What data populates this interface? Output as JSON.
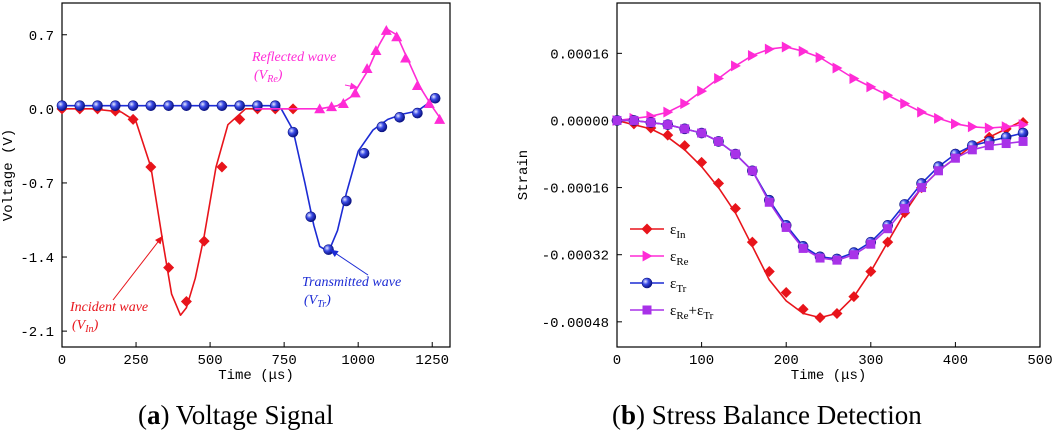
{
  "captions": {
    "a_label": "a",
    "a_text": "Voltage Signal",
    "b_label": "b",
    "b_text": "Stress Balance Detection"
  },
  "chart_data": [
    {
      "id": "a",
      "type": "line",
      "title": "",
      "xlabel": "Time (μs)",
      "ylabel": "Voltage (V)",
      "xlim": [
        0,
        1310
      ],
      "ylim": [
        -2.25,
        1.0
      ],
      "xticks": [
        0,
        250,
        500,
        750,
        1000,
        1250
      ],
      "yticks": [
        0.7,
        0.0,
        -0.7,
        -1.4,
        -2.1
      ],
      "ytick_labels": [
        "0.7",
        "0.0",
        "-0.7",
        "-1.4",
        "-2.1"
      ],
      "series": [
        {
          "name": "Incident wave",
          "color": "#e8141b",
          "marker": "diamond",
          "x": [
            0,
            100,
            200,
            250,
            300,
            340,
            370,
            400,
            420,
            450,
            480,
            520,
            560,
            620,
            700,
            800
          ],
          "y": [
            0.0,
            0.0,
            -0.03,
            -0.12,
            -0.55,
            -1.25,
            -1.75,
            -1.95,
            -1.88,
            -1.6,
            -1.2,
            -0.55,
            -0.15,
            0.0,
            0.0,
            0.0
          ],
          "marker_x": [
            0,
            60,
            120,
            180,
            240,
            300,
            360,
            420,
            480,
            540,
            600,
            660,
            720,
            780
          ],
          "marker_y": [
            0.0,
            0.0,
            0.0,
            -0.02,
            -0.1,
            -0.55,
            -1.5,
            -1.82,
            -1.25,
            -0.55,
            -0.1,
            0.0,
            0.0,
            0.0
          ]
        },
        {
          "name": "Transmitted wave",
          "color": "#1c2bd4",
          "marker": "sphere",
          "x": [
            0,
            700,
            740,
            780,
            820,
            850,
            870,
            900,
            930,
            960,
            1000,
            1050,
            1100,
            1150,
            1200,
            1260
          ],
          "y": [
            0.03,
            0.03,
            0.0,
            -0.2,
            -0.7,
            -1.1,
            -1.3,
            -1.35,
            -1.15,
            -0.8,
            -0.4,
            -0.2,
            -0.1,
            -0.05,
            -0.02,
            0.1
          ],
          "marker_x": [
            0,
            60,
            120,
            180,
            240,
            300,
            360,
            420,
            480,
            540,
            600,
            660,
            720,
            780,
            840,
            900,
            960,
            1020,
            1080,
            1140,
            1200,
            1260
          ],
          "marker_y": [
            0.03,
            0.03,
            0.03,
            0.03,
            0.03,
            0.03,
            0.03,
            0.03,
            0.03,
            0.03,
            0.03,
            0.03,
            0.03,
            -0.22,
            -1.02,
            -1.33,
            -0.87,
            -0.42,
            -0.17,
            -0.08,
            -0.04,
            0.1
          ]
        },
        {
          "name": "Reflected wave",
          "color": "#ff2bd6",
          "marker": "triangle-up",
          "x": [
            650,
            800,
            870,
            930,
            980,
            1030,
            1070,
            1100,
            1130,
            1170,
            1210,
            1250,
            1280
          ],
          "y": [
            0.0,
            0.0,
            0.0,
            0.03,
            0.12,
            0.35,
            0.6,
            0.75,
            0.7,
            0.45,
            0.2,
            0.02,
            -0.1
          ],
          "marker_x": [
            870,
            910,
            950,
            990,
            1030,
            1060,
            1095,
            1130,
            1160,
            1200,
            1240,
            1275
          ],
          "marker_y": [
            0.0,
            0.02,
            0.05,
            0.15,
            0.38,
            0.55,
            0.74,
            0.68,
            0.48,
            0.22,
            0.05,
            -0.1
          ]
        }
      ],
      "annotations": [
        {
          "line1": "Reflected wave",
          "line2_main": "(V",
          "line2_sub": "Re",
          "line2_end": ")",
          "color": "#ff2bd6"
        },
        {
          "line1": "Incident wave",
          "line2_main": "(V",
          "line2_sub": "In",
          "line2_end": ")",
          "color": "#e8141b"
        },
        {
          "line1": "Transmitted wave",
          "line2_main": "(V",
          "line2_sub": "Tr",
          "line2_end": ")",
          "color": "#1c2bd4"
        }
      ]
    },
    {
      "id": "b",
      "type": "line",
      "title": "",
      "xlabel": "Time (μs)",
      "ylabel": "Strain",
      "xlim": [
        0,
        500
      ],
      "ylim": [
        -0.00054,
        0.00028
      ],
      "xticks": [
        0,
        100,
        200,
        300,
        400,
        500
      ],
      "yticks": [
        0.00016,
        0.0,
        -0.00016,
        -0.00032,
        -0.00048
      ],
      "ytick_labels": [
        "0.00016",
        "0.00000",
        "-0.00016",
        "-0.00032",
        "-0.00048"
      ],
      "series": [
        {
          "name": "εIn",
          "legend_main": "ε",
          "legend_sub": "In",
          "color": "#e8141b",
          "marker": "diamond",
          "x": [
            0,
            20,
            40,
            60,
            80,
            100,
            120,
            140,
            160,
            180,
            200,
            220,
            240,
            260,
            280,
            300,
            320,
            340,
            360,
            380,
            400,
            420,
            440,
            460,
            480
          ],
          "y": [
            0,
            -1e-05,
            -2e-05,
            -4e-05,
            -7e-05,
            -0.00011,
            -0.00016,
            -0.00022,
            -0.0003,
            -0.00038,
            -0.00043,
            -0.00046,
            -0.00047,
            -0.00046,
            -0.00042,
            -0.00036,
            -0.00029,
            -0.00022,
            -0.00016,
            -0.00012,
            -9e-05,
            -6e-05,
            -4e-05,
            -2e-05,
            0
          ],
          "marker_x": [
            0,
            20,
            40,
            60,
            80,
            100,
            120,
            140,
            160,
            180,
            200,
            220,
            240,
            260,
            280,
            300,
            320,
            340,
            360,
            380,
            400,
            420,
            440,
            460,
            480
          ],
          "marker_y": [
            0,
            -8e-06,
            -1.8e-05,
            -3.5e-05,
            -6e-05,
            -0.0001,
            -0.00015,
            -0.00021,
            -0.00029,
            -0.00036,
            -0.00041,
            -0.00045,
            -0.00047,
            -0.00046,
            -0.00042,
            -0.00036,
            -0.00029,
            -0.00022,
            -0.00016,
            -0.00011,
            -8e-05,
            -6e-05,
            -4e-05,
            -2e-05,
            -5e-06
          ]
        },
        {
          "name": "εRe",
          "legend_main": "ε",
          "legend_sub": "Re",
          "color": "#ff2bd6",
          "marker": "triangle-right",
          "x": [
            0,
            20,
            40,
            60,
            80,
            100,
            120,
            140,
            160,
            180,
            200,
            220,
            240,
            260,
            280,
            300,
            320,
            340,
            360,
            380,
            400,
            420,
            440,
            460,
            480
          ],
          "y": [
            0,
            5e-06,
            1e-05,
            2e-05,
            4e-05,
            7e-05,
            0.0001,
            0.00013,
            0.000155,
            0.00017,
            0.000175,
            0.000165,
            0.00015,
            0.000125,
            0.0001,
            8e-05,
            6e-05,
            4e-05,
            2e-05,
            5e-06,
            -8e-06,
            -1.5e-05,
            -1.8e-05,
            -1.5e-05,
            -1e-05
          ],
          "marker_x": [
            0,
            20,
            40,
            60,
            80,
            100,
            120,
            140,
            160,
            180,
            200,
            220,
            240,
            260,
            280,
            300,
            320,
            340,
            360,
            380,
            400,
            420,
            440,
            460,
            480
          ],
          "marker_y": [
            0,
            5e-06,
            1e-05,
            2e-05,
            4e-05,
            7e-05,
            0.0001,
            0.00013,
            0.000155,
            0.00017,
            0.000175,
            0.000165,
            0.00015,
            0.000125,
            0.0001,
            8e-05,
            6e-05,
            4e-05,
            2e-05,
            5e-06,
            -8e-06,
            -1.5e-05,
            -1.8e-05,
            -1.5e-05,
            -1e-05
          ]
        },
        {
          "name": "εTr",
          "legend_main": "ε",
          "legend_sub": "Tr",
          "color": "#1c2bd4",
          "marker": "sphere",
          "x": [
            0,
            20,
            40,
            60,
            80,
            100,
            120,
            140,
            160,
            180,
            200,
            220,
            240,
            260,
            280,
            300,
            320,
            340,
            360,
            380,
            400,
            420,
            440,
            460,
            480
          ],
          "y": [
            0,
            0,
            -5e-06,
            -1e-05,
            -2e-05,
            -3e-05,
            -5e-05,
            -8e-05,
            -0.00012,
            -0.00019,
            -0.00025,
            -0.0003,
            -0.000325,
            -0.00033,
            -0.000315,
            -0.00029,
            -0.00025,
            -0.0002,
            -0.00015,
            -0.00011,
            -8e-05,
            -6e-05,
            -5e-05,
            -4e-05,
            -3e-05
          ],
          "marker_x": [
            0,
            20,
            40,
            60,
            80,
            100,
            120,
            140,
            160,
            180,
            200,
            220,
            240,
            260,
            280,
            300,
            320,
            340,
            360,
            380,
            400,
            420,
            440,
            460,
            480
          ],
          "marker_y": [
            0,
            0,
            -5e-06,
            -1e-05,
            -2e-05,
            -3e-05,
            -5e-05,
            -8e-05,
            -0.00012,
            -0.00019,
            -0.00025,
            -0.0003,
            -0.000325,
            -0.00033,
            -0.000315,
            -0.00029,
            -0.00025,
            -0.0002,
            -0.00015,
            -0.00011,
            -8e-05,
            -6e-05,
            -5e-05,
            -4e-05,
            -3e-05
          ]
        },
        {
          "name": "εRe+εTr",
          "legend_main": "ε",
          "legend_sub": "Re",
          "legend_main2": "+ε",
          "legend_sub2": "Tr",
          "color": "#a832e8",
          "marker": "square",
          "x": [
            0,
            20,
            40,
            60,
            80,
            100,
            120,
            140,
            160,
            180,
            200,
            220,
            240,
            260,
            280,
            300,
            320,
            340,
            360,
            380,
            400,
            420,
            440,
            460,
            480
          ],
          "y": [
            0,
            0,
            -5e-06,
            -1e-05,
            -2e-05,
            -3e-05,
            -5e-05,
            -8e-05,
            -0.00012,
            -0.000195,
            -0.000255,
            -0.000305,
            -0.000328,
            -0.000333,
            -0.00032,
            -0.000295,
            -0.000258,
            -0.00021,
            -0.00016,
            -0.00012,
            -9e-05,
            -7e-05,
            -6e-05,
            -5.5e-05,
            -5e-05
          ],
          "marker_x": [
            0,
            20,
            40,
            60,
            80,
            100,
            120,
            140,
            160,
            180,
            200,
            220,
            240,
            260,
            280,
            300,
            320,
            340,
            360,
            380,
            400,
            420,
            440,
            460,
            480
          ],
          "marker_y": [
            0,
            0,
            -5e-06,
            -1e-05,
            -2e-05,
            -3e-05,
            -5e-05,
            -8e-05,
            -0.00012,
            -0.000195,
            -0.000255,
            -0.000305,
            -0.000328,
            -0.000333,
            -0.00032,
            -0.000295,
            -0.000258,
            -0.00021,
            -0.00016,
            -0.00012,
            -9e-05,
            -7e-05,
            -6e-05,
            -5.5e-05,
            -5e-05
          ]
        }
      ],
      "legend_position": "bottom-left"
    }
  ]
}
